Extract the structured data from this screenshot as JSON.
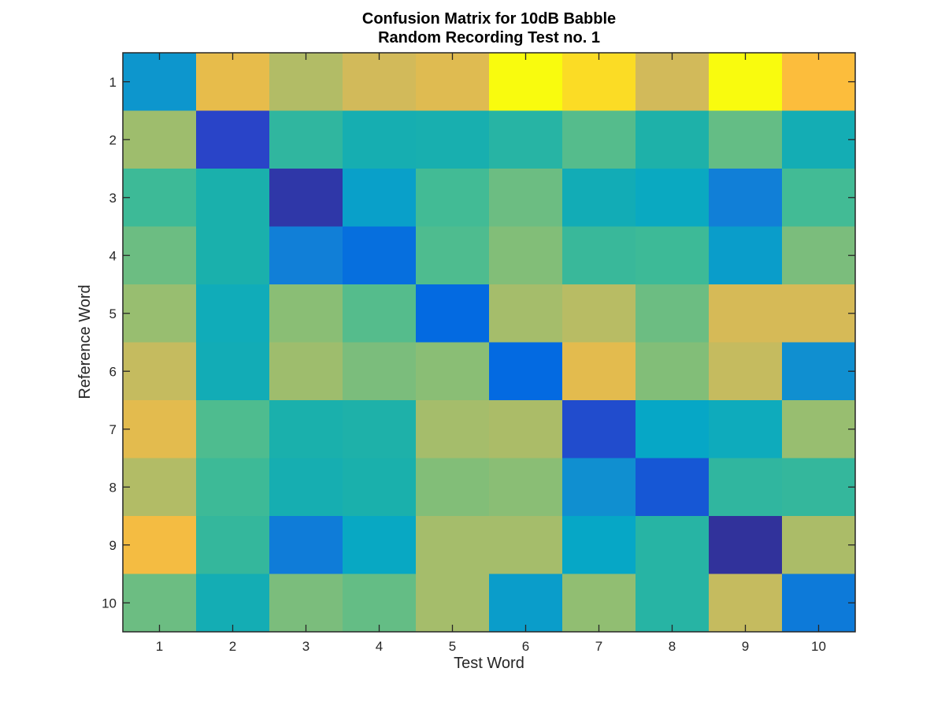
{
  "chart_data": {
    "type": "heatmap",
    "title": "Confusion Matrix for 10dB Babble",
    "subtitle": "Random Recording Test no. 1",
    "xlabel": "Test Word",
    "ylabel": "Reference Word",
    "x_categories": [
      "1",
      "2",
      "3",
      "4",
      "5",
      "6",
      "7",
      "8",
      "9",
      "10"
    ],
    "y_categories": [
      "1",
      "2",
      "3",
      "4",
      "5",
      "6",
      "7",
      "8",
      "9",
      "10"
    ],
    "colormap": "parula",
    "value_scale": "relative 0 (dark blue) to 1 (yellow)",
    "values": [
      [
        0.35,
        0.85,
        0.75,
        0.8,
        0.83,
        1.0,
        0.95,
        0.8,
        1.0,
        0.9
      ],
      [
        0.72,
        0.1,
        0.55,
        0.48,
        0.49,
        0.53,
        0.62,
        0.51,
        0.64,
        0.47
      ],
      [
        0.58,
        0.5,
        0.05,
        0.38,
        0.59,
        0.65,
        0.46,
        0.42,
        0.28,
        0.59
      ],
      [
        0.65,
        0.5,
        0.28,
        0.22,
        0.61,
        0.68,
        0.57,
        0.58,
        0.37,
        0.67
      ],
      [
        0.71,
        0.45,
        0.69,
        0.62,
        0.2,
        0.73,
        0.76,
        0.65,
        0.81,
        0.81
      ],
      [
        0.78,
        0.46,
        0.72,
        0.67,
        0.69,
        0.2,
        0.84,
        0.68,
        0.78,
        0.33
      ],
      [
        0.84,
        0.61,
        0.5,
        0.51,
        0.73,
        0.74,
        0.12,
        0.4,
        0.44,
        0.71
      ],
      [
        0.75,
        0.58,
        0.48,
        0.5,
        0.68,
        0.69,
        0.33,
        0.15,
        0.55,
        0.56
      ],
      [
        0.88,
        0.56,
        0.27,
        0.41,
        0.73,
        0.73,
        0.4,
        0.53,
        0.03,
        0.74
      ],
      [
        0.65,
        0.47,
        0.67,
        0.64,
        0.73,
        0.37,
        0.7,
        0.53,
        0.78,
        0.26
      ]
    ]
  }
}
